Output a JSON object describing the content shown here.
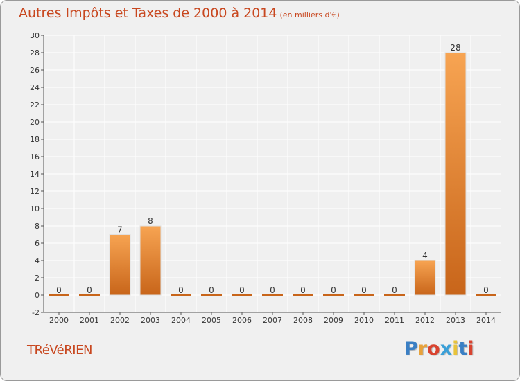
{
  "title": "Autres Impôts et Taxes de 2000 à 2014",
  "unit": "(en milliers d'€)",
  "commune": "TRéVéRIEN",
  "logo": {
    "letters": [
      "P",
      "r",
      "o",
      "x",
      "i",
      "t",
      "i"
    ],
    "colors": [
      "#3a7fc4",
      "#e8a23a",
      "#d9432f",
      "#3aa0d8",
      "#e8c33a",
      "#3a7fc4",
      "#d9432f"
    ]
  },
  "colors": {
    "bar_top": "#f7a452",
    "bar_bottom": "#c8651a",
    "title": "#c8471f",
    "plot_bg": "#f0f0f0",
    "grid": "#ffffff"
  },
  "chart_data": {
    "type": "bar",
    "categories": [
      "2000",
      "2001",
      "2002",
      "2003",
      "2004",
      "2005",
      "2006",
      "2007",
      "2008",
      "2009",
      "2010",
      "2011",
      "2012",
      "2013",
      "2014"
    ],
    "values": [
      0,
      0,
      7,
      8,
      0,
      0,
      0,
      0,
      0,
      0,
      0,
      0,
      4,
      28,
      0
    ],
    "ylim": [
      -2,
      30
    ],
    "yticks": [
      -2,
      0,
      2,
      4,
      6,
      8,
      10,
      12,
      14,
      16,
      18,
      20,
      22,
      24,
      26,
      28,
      30
    ],
    "grid": true
  }
}
